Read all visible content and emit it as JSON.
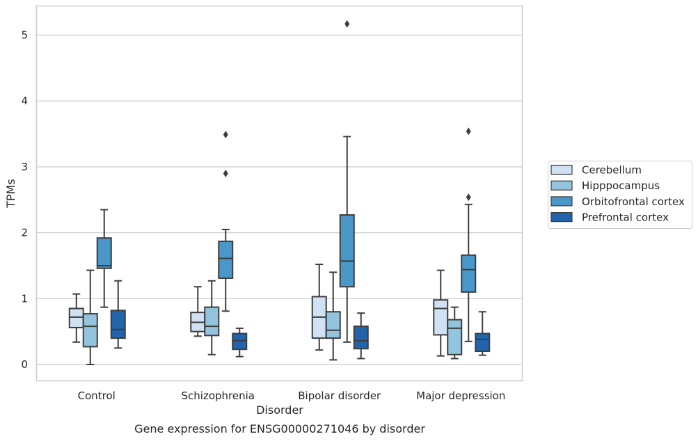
{
  "chart_data": {
    "type": "box",
    "title": "",
    "caption": "Gene expression for ENSG00000271046 by disorder",
    "xlabel": "Disorder",
    "ylabel": "TPMs",
    "ylim": [
      -0.25,
      5.43
    ],
    "yticks": [
      "0",
      "1",
      "2",
      "3",
      "4",
      "5"
    ],
    "grid": true,
    "legend_position": "right",
    "categories": [
      "Control",
      "Schizophrenia",
      "Bipolar disorder",
      "Major depression"
    ],
    "series": [
      {
        "name": "Cerebellum",
        "color": "#cfe1f2",
        "boxes": [
          {
            "whisker_low": 0.34,
            "q1": 0.56,
            "median": 0.72,
            "q3": 0.85,
            "whisker_high": 1.07,
            "outliers": []
          },
          {
            "whisker_low": 0.43,
            "q1": 0.5,
            "median": 0.64,
            "q3": 0.79,
            "whisker_high": 1.18,
            "outliers": []
          },
          {
            "whisker_low": 0.22,
            "q1": 0.4,
            "median": 0.72,
            "q3": 1.03,
            "whisker_high": 1.52,
            "outliers": []
          },
          {
            "whisker_low": 0.13,
            "q1": 0.45,
            "median": 0.85,
            "q3": 0.98,
            "whisker_high": 1.43,
            "outliers": []
          }
        ]
      },
      {
        "name": "Hipppocampus",
        "color": "#93c4de",
        "boxes": [
          {
            "whisker_low": 0.0,
            "q1": 0.27,
            "median": 0.58,
            "q3": 0.77,
            "whisker_high": 1.43,
            "outliers": []
          },
          {
            "whisker_low": 0.15,
            "q1": 0.44,
            "median": 0.58,
            "q3": 0.87,
            "whisker_high": 1.27,
            "outliers": []
          },
          {
            "whisker_low": 0.07,
            "q1": 0.4,
            "median": 0.52,
            "q3": 0.8,
            "whisker_high": 1.4,
            "outliers": []
          },
          {
            "whisker_low": 0.09,
            "q1": 0.15,
            "median": 0.55,
            "q3": 0.68,
            "whisker_high": 0.87,
            "outliers": []
          }
        ]
      },
      {
        "name": "Orbitofrontal cortex",
        "color": "#4a98c9",
        "boxes": [
          {
            "whisker_low": 0.87,
            "q1": 1.46,
            "median": 1.5,
            "q3": 1.92,
            "whisker_high": 2.35,
            "outliers": []
          },
          {
            "whisker_low": 0.81,
            "q1": 1.31,
            "median": 1.61,
            "q3": 1.87,
            "whisker_high": 2.05,
            "outliers": [
              2.9,
              3.49
            ]
          },
          {
            "whisker_low": 0.34,
            "q1": 1.18,
            "median": 1.57,
            "q3": 2.27,
            "whisker_high": 3.46,
            "outliers": [
              5.17
            ]
          },
          {
            "whisker_low": 0.35,
            "q1": 1.1,
            "median": 1.44,
            "q3": 1.66,
            "whisker_high": 2.43,
            "outliers": [
              2.54,
              3.54
            ]
          }
        ]
      },
      {
        "name": "Prefrontal cortex",
        "color": "#2164ab",
        "boxes": [
          {
            "whisker_low": 0.25,
            "q1": 0.4,
            "median": 0.53,
            "q3": 0.82,
            "whisker_high": 1.27,
            "outliers": []
          },
          {
            "whisker_low": 0.12,
            "q1": 0.23,
            "median": 0.36,
            "q3": 0.47,
            "whisker_high": 0.55,
            "outliers": []
          },
          {
            "whisker_low": 0.09,
            "q1": 0.24,
            "median": 0.36,
            "q3": 0.58,
            "whisker_high": 0.78,
            "outliers": []
          },
          {
            "whisker_low": 0.14,
            "q1": 0.2,
            "median": 0.38,
            "q3": 0.47,
            "whisker_high": 0.8,
            "outliers": []
          }
        ]
      }
    ]
  }
}
